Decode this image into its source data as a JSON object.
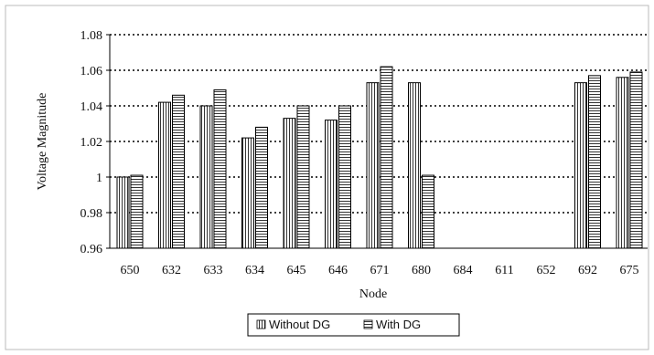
{
  "chart_data": {
    "type": "bar",
    "title": "",
    "xlabel": "Node",
    "ylabel": "Voltage Magnitude",
    "categories": [
      "650",
      "632",
      "633",
      "634",
      "645",
      "646",
      "671",
      "680",
      "684",
      "611",
      "652",
      "692",
      "675"
    ],
    "series": [
      {
        "name": "Without DG",
        "values": [
          1.0,
          1.042,
          1.04,
          1.022,
          1.033,
          1.032,
          1.053,
          1.053,
          null,
          null,
          null,
          1.053,
          1.056
        ]
      },
      {
        "name": "With DG",
        "values": [
          1.001,
          1.046,
          1.049,
          1.028,
          1.04,
          1.04,
          1.062,
          1.001,
          null,
          null,
          null,
          1.057,
          1.059
        ]
      }
    ],
    "ylim": [
      0.96,
      1.08
    ],
    "yticks": [
      0.96,
      0.98,
      1,
      1.02,
      1.04,
      1.06,
      1.08
    ],
    "ytick_labels": [
      "0.96",
      "0.98",
      "1",
      "1.02",
      "1.04",
      "1.06",
      "1.08"
    ],
    "grid": "horizontal dotted",
    "legend_position": "bottom-center",
    "colors": {
      "bar_fill": "#ffffff",
      "bar_stroke": "#000000",
      "grid": "#000000"
    }
  }
}
